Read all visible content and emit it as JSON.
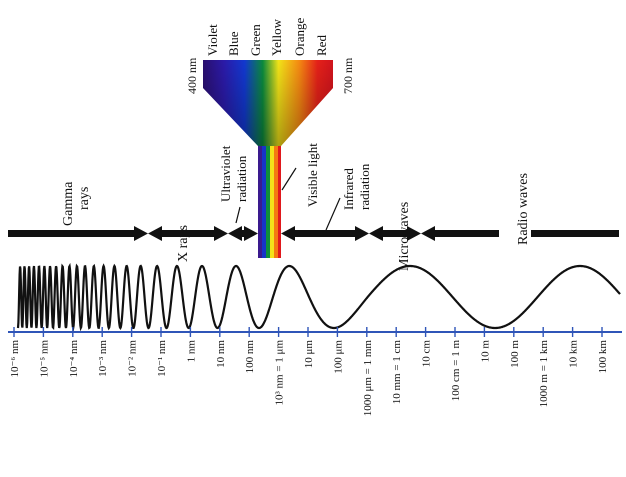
{
  "colors": {
    "ink": "#111111",
    "axis": "#2f55b8",
    "tick_label": "#2a58c6",
    "region_arrow": "#111111"
  },
  "spectrum": {
    "colors": [
      "Violet",
      "Blue",
      "Green",
      "Yellow",
      "Orange",
      "Red"
    ],
    "left_wavelength": "400 nm",
    "right_wavelength": "700 nm",
    "fill_colors": [
      "#3a1a8e",
      "#1734c8",
      "#0f8f3a",
      "#f4e21a",
      "#f47a12",
      "#e0181c"
    ]
  },
  "regions": {
    "gamma_line1": "Gamma",
    "gamma_line2": "rays",
    "xrays": "X rays",
    "uv_line1": "Ultraviolet",
    "uv_line2": "radiation",
    "visible": "Visible light",
    "ir_line1": "Infrared",
    "ir_line2": "radiation",
    "microwaves": "Microwaves",
    "radio": "Radio waves"
  },
  "ticks": [
    "10⁻⁶ nm",
    "10⁻⁵ nm",
    "10⁻⁴ nm",
    "10⁻³ nm",
    "10⁻² nm",
    "10⁻¹ nm",
    "1 nm",
    "10 nm",
    "100 nm",
    "10³ nm = 1 μm",
    "10 μm",
    "100 μm",
    "1000 μm = 1 mm",
    "10 mm = 1 cm",
    "10 cm",
    "100 cm = 1 m",
    "10 m",
    "100 m",
    "1000 m = 1 km",
    "10 km",
    "100 km"
  ]
}
